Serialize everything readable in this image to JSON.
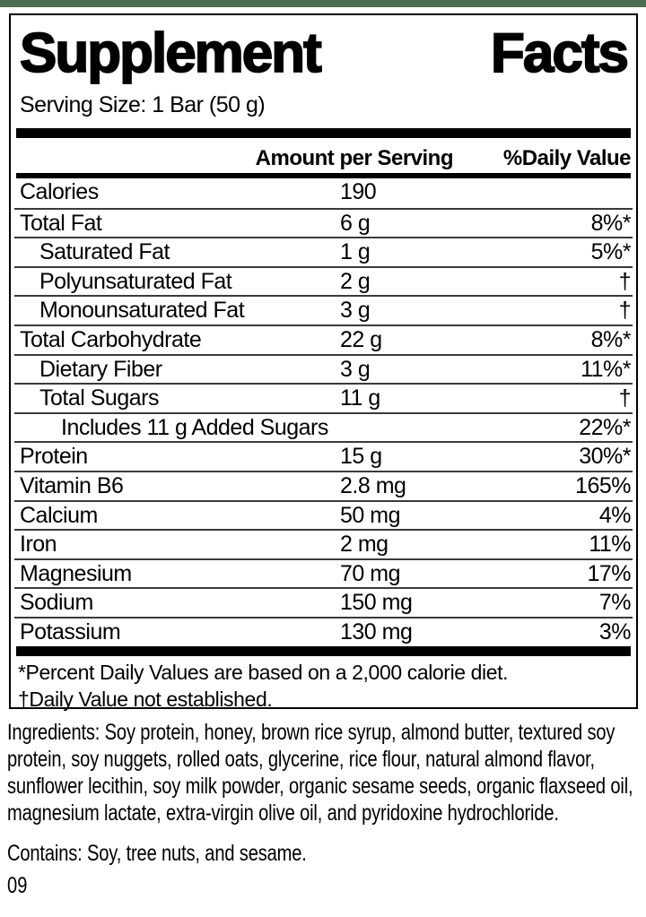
{
  "theme": {
    "top_bar_color": "#4b6e52",
    "text_color": "#000000",
    "separator_color": "#3a3a3a"
  },
  "label": {
    "title_word_left": "Supplement",
    "title_word_right": "Facts",
    "serving_size": "Serving Size: 1 Bar (50 g)",
    "columns": {
      "amount_header": "Amount per Serving",
      "dv_header": "%Daily Value"
    },
    "rows": [
      {
        "name": "Calories",
        "amount": "190",
        "dv": "",
        "indent": 0
      },
      {
        "name": "Total Fat",
        "amount": "6 g",
        "dv": "8%*",
        "indent": 0
      },
      {
        "name": "Saturated Fat",
        "amount": "1 g",
        "dv": "5%*",
        "indent": 1
      },
      {
        "name": "Polyunsaturated Fat",
        "amount": "2 g",
        "dv": "†",
        "indent": 1
      },
      {
        "name": "Monounsaturated Fat",
        "amount": "3 g",
        "dv": "†",
        "indent": 1
      },
      {
        "name": "Total Carbohydrate",
        "amount": "22 g",
        "dv": "8%*",
        "indent": 0
      },
      {
        "name": "Dietary Fiber",
        "amount": "3 g",
        "dv": "11%*",
        "indent": 1
      },
      {
        "name": "Total Sugars",
        "amount": "11 g",
        "dv": "†",
        "indent": 1
      },
      {
        "name": "Includes 11 g Added Sugars",
        "amount": "",
        "dv": "22%*",
        "indent": 2
      },
      {
        "name": "Protein",
        "amount": "15 g",
        "dv": "30%*",
        "indent": 0
      },
      {
        "name": "Vitamin B6",
        "amount": "2.8 mg",
        "dv": "165%",
        "indent": 0
      },
      {
        "name": "Calcium",
        "amount": "50 mg",
        "dv": "4%",
        "indent": 0
      },
      {
        "name": "Iron",
        "amount": "2 mg",
        "dv": "11%",
        "indent": 0
      },
      {
        "name": "Magnesium",
        "amount": "70 mg",
        "dv": "17%",
        "indent": 0
      },
      {
        "name": "Sodium",
        "amount": "150 mg",
        "dv": "7%",
        "indent": 0
      },
      {
        "name": "Potassium",
        "amount": "130 mg",
        "dv": "3%",
        "indent": 0
      }
    ],
    "footnotes": [
      "*Percent Daily Values are based on a 2,000 calorie diet.",
      "†Daily Value not established."
    ]
  },
  "ingredients_text": "Ingredients: Soy protein, honey, brown rice syrup, almond butter, textured soy protein, soy nuggets, rolled oats, glycerine, rice flour, natural almond flavor, sunflower lecithin, soy milk powder, organic sesame seeds, organic flaxseed oil, magnesium lactate, extra-virgin olive oil, and pyridoxine hydrochloride.",
  "contains_text": "Contains: Soy, tree nuts, and sesame.",
  "footer_code": "09"
}
